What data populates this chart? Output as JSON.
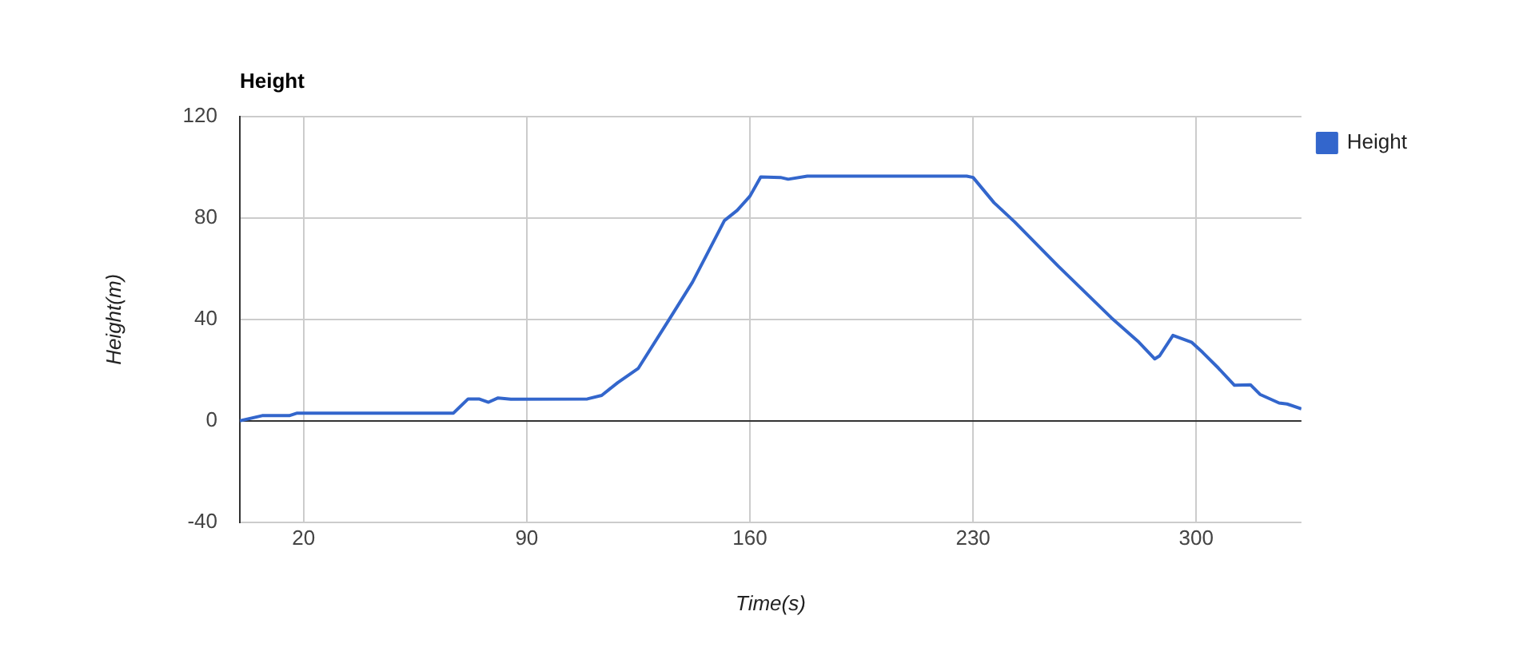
{
  "chart_data": {
    "type": "line",
    "title": "Height",
    "xlabel": "Time(s)",
    "ylabel": "Height(m)",
    "x": [
      0,
      7,
      15.5,
      18,
      65,
      67,
      71.6,
      75,
      78,
      81,
      85,
      109,
      113.5,
      118.5,
      125,
      135,
      142,
      152,
      156,
      160,
      163.4,
      169.6,
      172,
      178,
      228,
      230,
      236.6,
      243,
      256.7,
      273.4,
      282,
      287,
      288.5,
      292.7,
      298.5,
      302,
      307,
      312,
      317,
      320,
      326,
      328.5,
      333
    ],
    "series": [
      {
        "name": "Height",
        "color": "#3366cc",
        "values": [
          0,
          2,
          2,
          3,
          3,
          3,
          8.6,
          8.6,
          7.3,
          9,
          8.5,
          8.6,
          10,
          15,
          20.7,
          40.6,
          54.7,
          79,
          83,
          88.6,
          96.2,
          96,
          95.3,
          96.5,
          96.5,
          96,
          86,
          78.5,
          61,
          40.6,
          31,
          24.4,
          25.6,
          33.7,
          31,
          27,
          20.7,
          14,
          14.2,
          10.4,
          7,
          6.6,
          4.7
        ]
      }
    ],
    "xlim": [
      0,
      333
    ],
    "xticks": [
      20,
      90,
      160,
      230,
      300
    ],
    "ylim": [
      -40,
      120
    ],
    "yticks": [
      -40,
      0,
      40,
      80,
      120
    ],
    "grid": true,
    "legend": "top right",
    "marker": "none",
    "line_style": "solid"
  }
}
